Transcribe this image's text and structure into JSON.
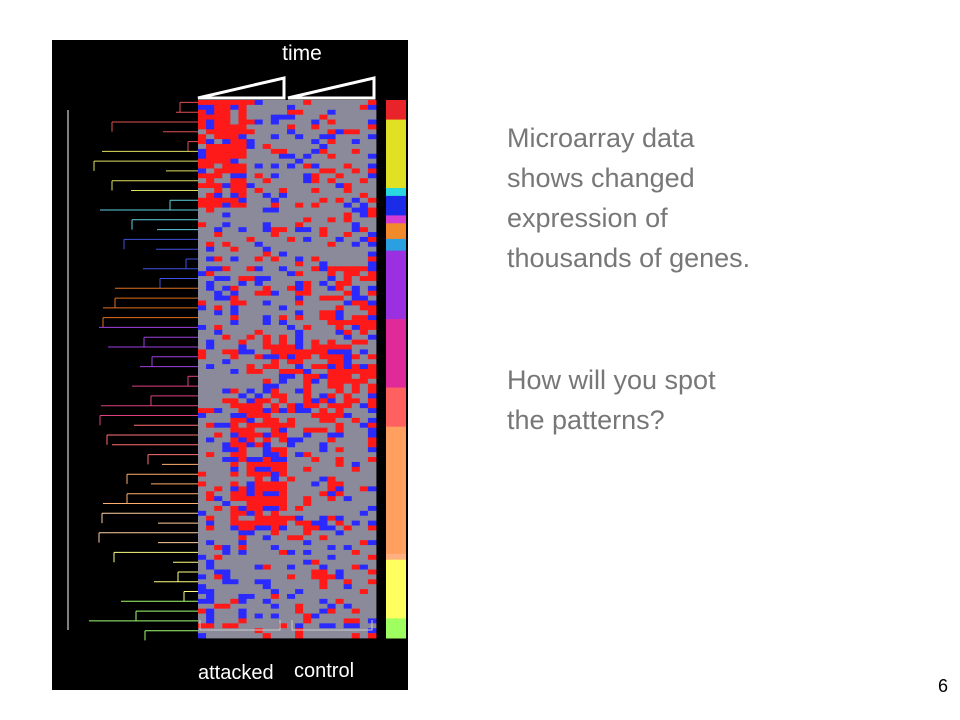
{
  "figure": {
    "time_label": "time",
    "attacked_label": "attacked",
    "control_label": "control",
    "cluster_bar_colors": [
      "#e8242a",
      "#e0e024",
      "#2ad8e0",
      "#1a2ce8",
      "#d43ad4",
      "#f08a2a",
      "#2aa0e0",
      "#9a30e0",
      "#e02a9a",
      "#ff6060",
      "#ffa060",
      "#ffb080",
      "#ffff60",
      "#a0ff60"
    ],
    "heatmap_colors": {
      "high": "#ff1a1a",
      "mid": "#8a8a9a",
      "low": "#2a2aff"
    }
  },
  "text": {
    "main": "Microarray data\nshows changed\nexpression  of\nthousands of genes.",
    "question": "How will you spot\nthe patterns?"
  },
  "page_number": "6"
}
